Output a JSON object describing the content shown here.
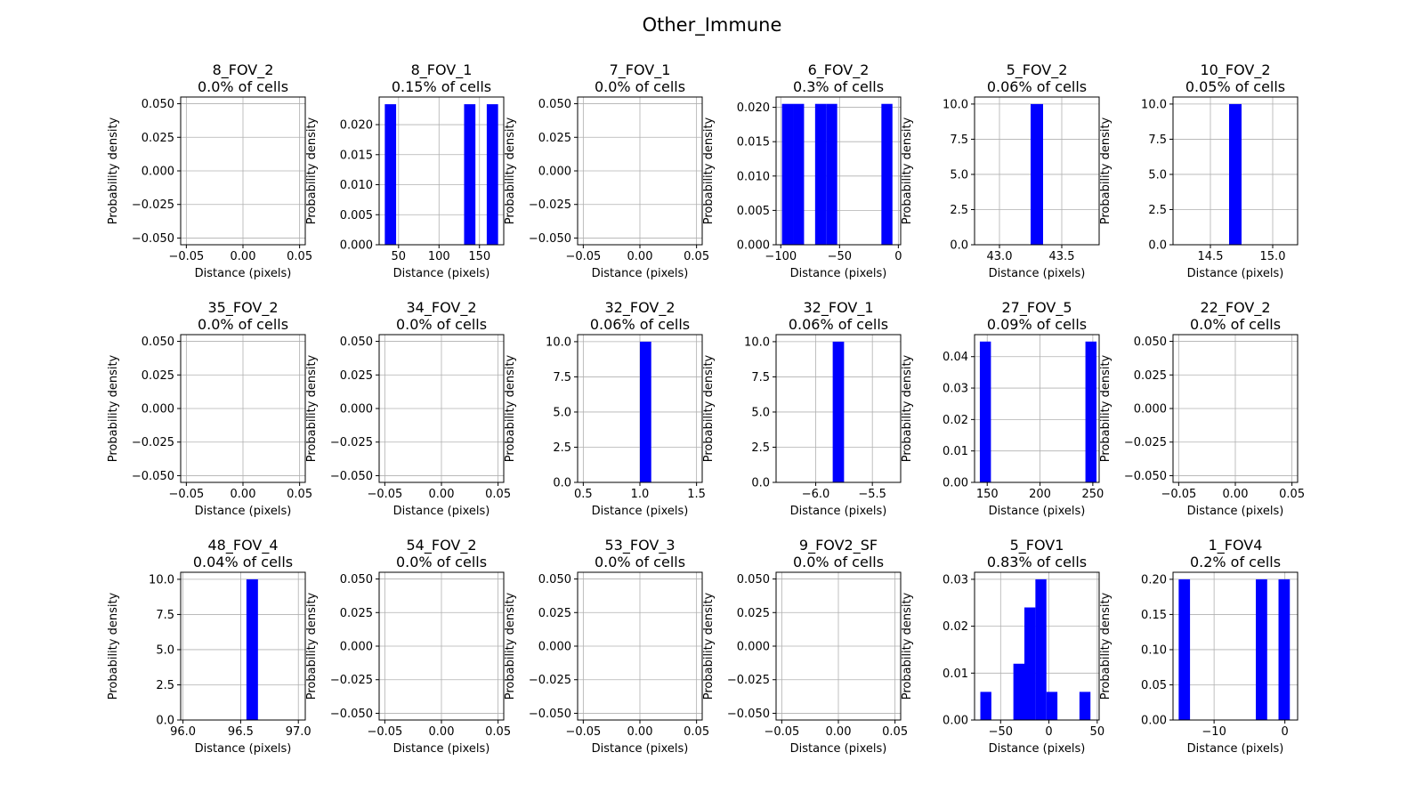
{
  "figure": {
    "title": "Other_Immune"
  },
  "colors": {
    "bar": "#0000ff",
    "grid": "#b0b0b0",
    "axis": "#000000"
  },
  "chart_data": [
    {
      "type": "histogram",
      "title": "8_FOV_2",
      "subtitle": "0.0% of cells",
      "xlabel": "Distance (pixels)",
      "ylabel": "Probability density",
      "xlim": [
        -0.055,
        0.055
      ],
      "ylim": [
        -0.055,
        0.055
      ],
      "xticks": [
        -0.05,
        0.0,
        0.05
      ],
      "xticklabels": [
        "−0.05",
        "0.00",
        "0.05"
      ],
      "yticks": [
        -0.05,
        -0.025,
        0.0,
        0.025,
        0.05
      ],
      "yticklabels": [
        "−0.050",
        "−0.025",
        "0.000",
        "0.025",
        "0.050"
      ],
      "bins": [],
      "grid": true
    },
    {
      "type": "histogram",
      "title": "8_FOV_1",
      "subtitle": "0.15% of cells",
      "xlabel": "Distance (pixels)",
      "ylabel": "Probability density",
      "xlim": [
        26,
        180
      ],
      "ylim": [
        0,
        0.0246
      ],
      "xticks": [
        50,
        100,
        150
      ],
      "xticklabels": [
        "50",
        "100",
        "150"
      ],
      "yticks": [
        0,
        0.005,
        0.01,
        0.015,
        0.02
      ],
      "yticklabels": [
        "0.000",
        "0.005",
        "0.010",
        "0.015",
        "0.020"
      ],
      "bins": [
        {
          "x0": 33,
          "x1": 47,
          "y": 0.0234
        },
        {
          "x0": 131,
          "x1": 145,
          "y": 0.0234
        },
        {
          "x0": 159,
          "x1": 173,
          "y": 0.0234
        }
      ],
      "grid": true
    },
    {
      "type": "histogram",
      "title": "7_FOV_1",
      "subtitle": "0.0% of cells",
      "xlabel": "Distance (pixels)",
      "ylabel": "Probability density",
      "xlim": [
        -0.055,
        0.055
      ],
      "ylim": [
        -0.055,
        0.055
      ],
      "xticks": [
        -0.05,
        0.0,
        0.05
      ],
      "xticklabels": [
        "−0.05",
        "0.00",
        "0.05"
      ],
      "yticks": [
        -0.05,
        -0.025,
        0.0,
        0.025,
        0.05
      ],
      "yticklabels": [
        "−0.050",
        "−0.025",
        "0.000",
        "0.025",
        "0.050"
      ],
      "bins": [],
      "grid": true
    },
    {
      "type": "histogram",
      "title": "6_FOV_2",
      "subtitle": "0.3% of cells",
      "xlabel": "Distance (pixels)",
      "ylabel": "Probability density",
      "xlim": [
        -104,
        2
      ],
      "ylim": [
        0,
        0.0215
      ],
      "xticks": [
        -100,
        -50,
        0
      ],
      "xticklabels": [
        "−100",
        "−50",
        "0"
      ],
      "yticks": [
        0,
        0.005,
        0.01,
        0.015,
        0.02
      ],
      "yticklabels": [
        "0.000",
        "0.005",
        "0.010",
        "0.015",
        "0.020"
      ],
      "bins": [
        {
          "x0": -99,
          "x1": -89.6,
          "y": 0.0205
        },
        {
          "x0": -89.6,
          "x1": -80.2,
          "y": 0.0205
        },
        {
          "x0": -70.8,
          "x1": -61.4,
          "y": 0.0205
        },
        {
          "x0": -61.4,
          "x1": -52,
          "y": 0.0205
        },
        {
          "x0": -14.4,
          "x1": -5,
          "y": 0.0205
        }
      ],
      "grid": true
    },
    {
      "type": "histogram",
      "title": "5_FOV_2",
      "subtitle": "0.06% of cells",
      "xlabel": "Distance (pixels)",
      "ylabel": "Probability density",
      "xlim": [
        42.8,
        43.8
      ],
      "ylim": [
        0,
        10.5
      ],
      "xticks": [
        43.0,
        43.5
      ],
      "xticklabels": [
        "43.0",
        "43.5"
      ],
      "yticks": [
        0,
        2.5,
        5,
        7.5,
        10
      ],
      "yticklabels": [
        "0.0",
        "2.5",
        "5.0",
        "7.5",
        "10.0"
      ],
      "bins": [
        {
          "x0": 43.25,
          "x1": 43.35,
          "y": 10
        }
      ],
      "grid": true
    },
    {
      "type": "histogram",
      "title": "10_FOV_2",
      "subtitle": "0.05% of cells",
      "xlabel": "Distance (pixels)",
      "ylabel": "Probability density",
      "xlim": [
        14.2,
        15.2
      ],
      "ylim": [
        0,
        10.5
      ],
      "xticks": [
        14.5,
        15.0
      ],
      "xticklabels": [
        "14.5",
        "15.0"
      ],
      "yticks": [
        0,
        2.5,
        5,
        7.5,
        10
      ],
      "yticklabels": [
        "0.0",
        "2.5",
        "5.0",
        "7.5",
        "10.0"
      ],
      "bins": [
        {
          "x0": 14.65,
          "x1": 14.75,
          "y": 10
        }
      ],
      "grid": true
    },
    {
      "type": "histogram",
      "title": "35_FOV_2",
      "subtitle": "0.0% of cells",
      "xlabel": "Distance (pixels)",
      "ylabel": "Probability density",
      "xlim": [
        -0.055,
        0.055
      ],
      "ylim": [
        -0.055,
        0.055
      ],
      "xticks": [
        -0.05,
        0.0,
        0.05
      ],
      "xticklabels": [
        "−0.05",
        "0.00",
        "0.05"
      ],
      "yticks": [
        -0.05,
        -0.025,
        0.0,
        0.025,
        0.05
      ],
      "yticklabels": [
        "−0.050",
        "−0.025",
        "0.000",
        "0.025",
        "0.050"
      ],
      "bins": [],
      "grid": true
    },
    {
      "type": "histogram",
      "title": "34_FOV_2",
      "subtitle": "0.0% of cells",
      "xlabel": "Distance (pixels)",
      "ylabel": "Probability density",
      "xlim": [
        -0.055,
        0.055
      ],
      "ylim": [
        -0.055,
        0.055
      ],
      "xticks": [
        -0.05,
        0.0,
        0.05
      ],
      "xticklabels": [
        "−0.05",
        "0.00",
        "0.05"
      ],
      "yticks": [
        -0.05,
        -0.025,
        0.0,
        0.025,
        0.05
      ],
      "yticklabels": [
        "−0.050",
        "−0.025",
        "0.000",
        "0.025",
        "0.050"
      ],
      "bins": [],
      "grid": true
    },
    {
      "type": "histogram",
      "title": "32_FOV_2",
      "subtitle": "0.06% of cells",
      "xlabel": "Distance (pixels)",
      "ylabel": "Probability density",
      "xlim": [
        0.45,
        1.55
      ],
      "ylim": [
        0,
        10.5
      ],
      "xticks": [
        0.5,
        1.0,
        1.5
      ],
      "xticklabels": [
        "0.5",
        "1.0",
        "1.5"
      ],
      "yticks": [
        0,
        2.5,
        5,
        7.5,
        10
      ],
      "yticklabels": [
        "0.0",
        "2.5",
        "5.0",
        "7.5",
        "10.0"
      ],
      "bins": [
        {
          "x0": 1.0,
          "x1": 1.1,
          "y": 10
        }
      ],
      "grid": true
    },
    {
      "type": "histogram",
      "title": "32_FOV_1",
      "subtitle": "0.06% of cells",
      "xlabel": "Distance (pixels)",
      "ylabel": "Probability density",
      "xlim": [
        -6.35,
        -5.25
      ],
      "ylim": [
        0,
        10.5
      ],
      "xticks": [
        -6.0,
        -5.5
      ],
      "xticklabels": [
        "−6.0",
        "−5.5"
      ],
      "yticks": [
        0,
        2.5,
        5,
        7.5,
        10
      ],
      "yticklabels": [
        "0.0",
        "2.5",
        "5.0",
        "7.5",
        "10.0"
      ],
      "bins": [
        {
          "x0": -5.85,
          "x1": -5.75,
          "y": 10
        }
      ],
      "grid": true
    },
    {
      "type": "histogram",
      "title": "27_FOV_5",
      "subtitle": "0.09% of cells",
      "xlabel": "Distance (pixels)",
      "ylabel": "Probability density",
      "xlim": [
        138,
        256
      ],
      "ylim": [
        0,
        0.047
      ],
      "xticks": [
        150,
        200,
        250
      ],
      "xticklabels": [
        "150",
        "200",
        "250"
      ],
      "yticks": [
        0,
        0.01,
        0.02,
        0.03,
        0.04
      ],
      "yticklabels": [
        "0.00",
        "0.01",
        "0.02",
        "0.03",
        "0.04"
      ],
      "bins": [
        {
          "x0": 143,
          "x1": 153.5,
          "y": 0.0448
        },
        {
          "x0": 243,
          "x1": 253.5,
          "y": 0.0448
        }
      ],
      "grid": true
    },
    {
      "type": "histogram",
      "title": "22_FOV_2",
      "subtitle": "0.0% of cells",
      "xlabel": "Distance (pixels)",
      "ylabel": "Probability density",
      "xlim": [
        -0.055,
        0.055
      ],
      "ylim": [
        -0.055,
        0.055
      ],
      "xticks": [
        -0.05,
        0.0,
        0.05
      ],
      "xticklabels": [
        "−0.05",
        "0.00",
        "0.05"
      ],
      "yticks": [
        -0.05,
        -0.025,
        0.0,
        0.025,
        0.05
      ],
      "yticklabels": [
        "−0.050",
        "−0.025",
        "0.000",
        "0.025",
        "0.050"
      ],
      "bins": [],
      "grid": true
    },
    {
      "type": "histogram",
      "title": "48_FOV_4",
      "subtitle": "0.04% of cells",
      "xlabel": "Distance (pixels)",
      "ylabel": "Probability density",
      "xlim": [
        95.98,
        97.06
      ],
      "ylim": [
        0,
        10.5
      ],
      "xticks": [
        96.0,
        96.5,
        97.0
      ],
      "xticklabels": [
        "96.0",
        "96.5",
        "97.0"
      ],
      "yticks": [
        0,
        2.5,
        5,
        7.5,
        10
      ],
      "yticklabels": [
        "0.0",
        "2.5",
        "5.0",
        "7.5",
        "10.0"
      ],
      "bins": [
        {
          "x0": 96.55,
          "x1": 96.65,
          "y": 10
        }
      ],
      "grid": true
    },
    {
      "type": "histogram",
      "title": "54_FOV_2",
      "subtitle": "0.0% of cells",
      "xlabel": "Distance (pixels)",
      "ylabel": "Probability density",
      "xlim": [
        -0.055,
        0.055
      ],
      "ylim": [
        -0.055,
        0.055
      ],
      "xticks": [
        -0.05,
        0.0,
        0.05
      ],
      "xticklabels": [
        "−0.05",
        "0.00",
        "0.05"
      ],
      "yticks": [
        -0.05,
        -0.025,
        0.0,
        0.025,
        0.05
      ],
      "yticklabels": [
        "−0.050",
        "−0.025",
        "0.000",
        "0.025",
        "0.050"
      ],
      "bins": [],
      "grid": true
    },
    {
      "type": "histogram",
      "title": "53_FOV_3",
      "subtitle": "0.0% of cells",
      "xlabel": "Distance (pixels)",
      "ylabel": "Probability density",
      "xlim": [
        -0.055,
        0.055
      ],
      "ylim": [
        -0.055,
        0.055
      ],
      "xticks": [
        -0.05,
        0.0,
        0.05
      ],
      "xticklabels": [
        "−0.05",
        "0.00",
        "0.05"
      ],
      "yticks": [
        -0.05,
        -0.025,
        0.0,
        0.025,
        0.05
      ],
      "yticklabels": [
        "−0.050",
        "−0.025",
        "0.000",
        "0.025",
        "0.050"
      ],
      "bins": [],
      "grid": true
    },
    {
      "type": "histogram",
      "title": "9_FOV2_SF",
      "subtitle": "0.0% of cells",
      "xlabel": "Distance (pixels)",
      "ylabel": "Probability density",
      "xlim": [
        -0.055,
        0.055
      ],
      "ylim": [
        -0.055,
        0.055
      ],
      "xticks": [
        -0.05,
        0.0,
        0.05
      ],
      "xticklabels": [
        "−0.05",
        "0.00",
        "0.05"
      ],
      "yticks": [
        -0.05,
        -0.025,
        0.0,
        0.025,
        0.05
      ],
      "yticklabels": [
        "−0.050",
        "−0.025",
        "0.000",
        "0.025",
        "0.050"
      ],
      "bins": [],
      "grid": true
    },
    {
      "type": "histogram",
      "title": "5_FOV1",
      "subtitle": "0.83% of cells",
      "xlabel": "Distance (pixels)",
      "ylabel": "Probability density",
      "xlim": [
        -77,
        52
      ],
      "ylim": [
        0,
        0.0315
      ],
      "xticks": [
        -50,
        0,
        50
      ],
      "xticklabels": [
        "−50",
        "0",
        "50"
      ],
      "yticks": [
        0,
        0.01,
        0.02,
        0.03
      ],
      "yticklabels": [
        "0.00",
        "0.01",
        "0.02",
        "0.03"
      ],
      "bins": [
        {
          "x0": -71,
          "x1": -59.6,
          "y": 0.006
        },
        {
          "x0": -36.8,
          "x1": -25.4,
          "y": 0.012
        },
        {
          "x0": -25.4,
          "x1": -14,
          "y": 0.024
        },
        {
          "x0": -14,
          "x1": -2.6,
          "y": 0.03
        },
        {
          "x0": -2.6,
          "x1": 8.8,
          "y": 0.006
        },
        {
          "x0": 31.6,
          "x1": 43,
          "y": 0.006
        }
      ],
      "grid": true
    },
    {
      "type": "histogram",
      "title": "1_FOV4",
      "subtitle": "0.2% of cells",
      "xlabel": "Distance (pixels)",
      "ylabel": "Probability density",
      "xlim": [
        -15.8,
        1.8
      ],
      "ylim": [
        0,
        0.21
      ],
      "xticks": [
        -10,
        0
      ],
      "xticklabels": [
        "−10",
        "0"
      ],
      "yticks": [
        0,
        0.05,
        0.1,
        0.15,
        0.2
      ],
      "yticklabels": [
        "0.00",
        "0.05",
        "0.10",
        "0.15",
        "0.20"
      ],
      "bins": [
        {
          "x0": -15,
          "x1": -13.4,
          "y": 0.2
        },
        {
          "x0": -4.1,
          "x1": -2.5,
          "y": 0.2
        },
        {
          "x0": -0.9,
          "x1": 0.7,
          "y": 0.2
        }
      ],
      "grid": true
    }
  ]
}
